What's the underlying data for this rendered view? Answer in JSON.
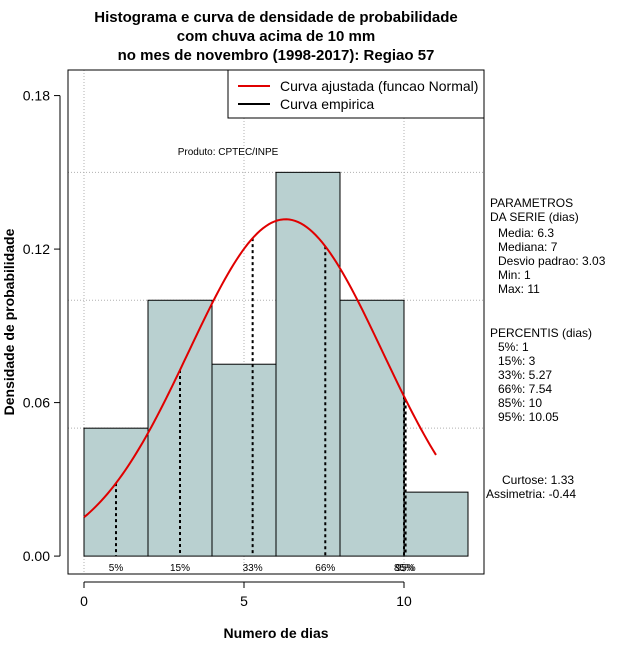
{
  "chart_data": {
    "type": "bar",
    "title": [
      "Histograma e curva de densidade de probabilidade",
      "com chuva acima de 10 mm",
      "no mes de novembro (1998-2017): Regiao 57"
    ],
    "xlabel": "Numero de dias",
    "ylabel": "Densidade de probabilidade",
    "xlim": [
      -0.5,
      12.5
    ],
    "ylim": [
      -0.007,
      0.19
    ],
    "xticks": [
      0,
      5,
      10
    ],
    "yticks": [
      0.0,
      0.06,
      0.12,
      0.18
    ],
    "ytick_labels": [
      "0.00",
      "0.06",
      "0.12",
      "0.18"
    ],
    "grid_x": [
      0,
      5,
      10
    ],
    "grid_y": [
      0.05,
      0.1,
      0.15
    ],
    "bins": [
      {
        "x0": 0,
        "x1": 2,
        "density": 0.05
      },
      {
        "x0": 2,
        "x1": 4,
        "density": 0.1
      },
      {
        "x0": 4,
        "x1": 6,
        "density": 0.075
      },
      {
        "x0": 6,
        "x1": 8,
        "density": 0.15
      },
      {
        "x0": 8,
        "x1": 10,
        "density": 0.1
      },
      {
        "x0": 10,
        "x1": 12,
        "density": 0.025
      }
    ],
    "bar_color": "#b9d0d0",
    "curve_color": "#e00000",
    "normal_fit": {
      "mean": 6.3,
      "sd": 3.03,
      "x_from": 0,
      "x_to": 11
    },
    "percentiles": [
      {
        "x": 1,
        "label": "5%"
      },
      {
        "x": 3,
        "label": "15%"
      },
      {
        "x": 5.27,
        "label": "33%"
      },
      {
        "x": 7.54,
        "label": "66%"
      },
      {
        "x": 10,
        "label": "85%"
      },
      {
        "x": 10.05,
        "label": "95%"
      }
    ],
    "legend": {
      "position": "top-right",
      "entries": [
        {
          "label": "Curva ajustada (funcao Normal)",
          "color": "#e00000"
        },
        {
          "label": "Curva empirica",
          "color": "#000000"
        }
      ]
    },
    "annotation": "Produto: CPTEC/INPE",
    "parametros": {
      "heading": [
        "PARAMETROS",
        "DA SERIE (dias)"
      ],
      "lines": [
        "Media: 6.3",
        "Mediana: 7",
        "Desvio padrao: 3.03",
        "Min: 1",
        "Max: 11"
      ]
    },
    "percentis": {
      "heading": "PERCENTIS (dias)",
      "lines": [
        "5%: 1",
        "15%: 3",
        "33%: 5.27",
        "66%: 7.54",
        "85%: 10",
        "95%: 10.05"
      ]
    },
    "stats": [
      "Curtose: 1.33",
      "Assimetria: -0.44"
    ]
  }
}
